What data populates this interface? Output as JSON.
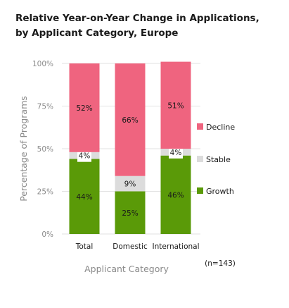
{
  "chart_data": {
    "type": "bar",
    "stacked": true,
    "title_line1": "Relative Year-on-Year Change in Applications,",
    "title_line2": "by Applicant Category, Europe",
    "xlabel": "Applicant Category",
    "ylabel": "Percentage of Programs",
    "categories": [
      "Total",
      "Domestic",
      "International"
    ],
    "series": [
      {
        "name": "Growth",
        "values": [
          44,
          25,
          46
        ],
        "labels": [
          "44%",
          "25%",
          "46%"
        ],
        "color": "#5a9a08"
      },
      {
        "name": "Stable",
        "values": [
          4,
          9,
          4
        ],
        "labels": [
          "4%",
          "9%",
          "4%"
        ],
        "color": "#dcdcdc"
      },
      {
        "name": "Decline",
        "values": [
          52,
          66,
          51
        ],
        "labels": [
          "52%",
          "66%",
          "51%"
        ],
        "color": "#ef647f"
      }
    ],
    "yticks": [
      "0%",
      "25%",
      "50%",
      "75%",
      "100%"
    ],
    "ylim": [
      0,
      100
    ],
    "legend_position": "right",
    "grid": true,
    "note": "(n=143)"
  }
}
